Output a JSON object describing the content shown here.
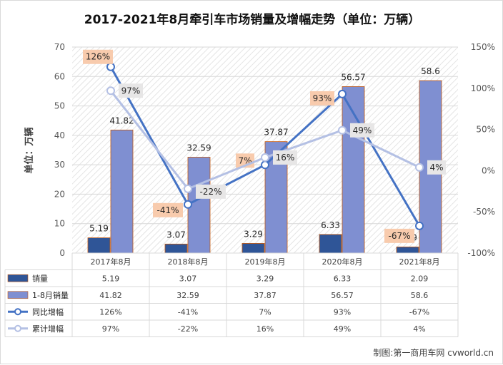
{
  "chart_data": {
    "type": "bar",
    "title": "2017-2021年8月牵引车市场销量及增幅走势（单位：万辆）",
    "ylabel": "单位：万辆",
    "categories": [
      "2017年8月",
      "2018年8月",
      "2019年8月",
      "2020年8月",
      "2021年8月"
    ],
    "ylim": [
      0,
      70
    ],
    "yticks": [
      "0",
      "10",
      "20",
      "30",
      "40",
      "50",
      "60",
      "70"
    ],
    "y2lim": [
      -100,
      150
    ],
    "y2ticks": [
      "-100%",
      "-50%",
      "0%",
      "50%",
      "100%",
      "150%"
    ],
    "series": [
      {
        "name": "销量",
        "kind": "bar",
        "axis": "left",
        "color": "#2f5597",
        "values": [
          5.19,
          3.07,
          3.29,
          6.33,
          2.09
        ],
        "labels": [
          "5.19",
          "3.07",
          "3.29",
          "6.33",
          "2.09"
        ]
      },
      {
        "name": "1-8月销量",
        "kind": "bar",
        "axis": "left",
        "color": "#7f8fd1",
        "values": [
          41.82,
          32.59,
          37.87,
          56.57,
          58.6
        ],
        "labels": [
          "41.82",
          "32.59",
          "37.87",
          "56.57",
          "58.6"
        ]
      },
      {
        "name": "同比增幅",
        "kind": "line",
        "axis": "right",
        "color": "#4472c4",
        "values": [
          126,
          -41,
          7,
          93,
          -67
        ],
        "labels": [
          "126%",
          "-41%",
          "7%",
          "93%",
          "-67%"
        ]
      },
      {
        "name": "累计增幅",
        "kind": "line",
        "axis": "right",
        "color": "#b4c0e4",
        "values": [
          97,
          -22,
          16,
          49,
          4
        ],
        "labels": [
          "97%",
          "-22%",
          "16%",
          "49%",
          "4%"
        ]
      }
    ],
    "grid": true,
    "legend": "data-table"
  },
  "footer": {
    "credit": "制图:第一商用车网 cvworld.cn"
  }
}
